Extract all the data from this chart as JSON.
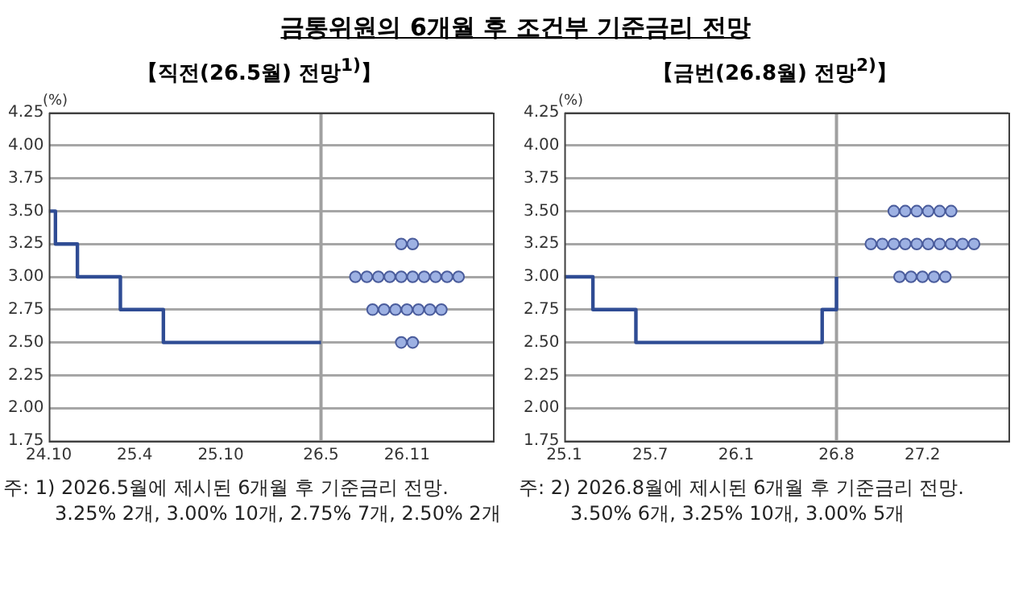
{
  "chart_data": [
    {
      "type": "step",
      "title": "금통위원의 6개월 후 조건부 기준금리 전망",
      "subtitle": "【직전(26.5월) 전망$^{1)}$】",
      "ylabel": "(%)",
      "annotations": [
        "주: 1) 2026.5월에 제시된 6개월 후 기준금리 전망.",
        "3.25% 2개, 3.00% 10개, 2.75% 7개, 2.50% 2개"
      ],
      "xlim": [
        "2024-10",
        "2027-05"
      ],
      "xticks": [
        {
          "value": "2024-10",
          "label": "24.10"
        },
        {
          "value": "2025-04",
          "label": "25.4"
        },
        {
          "value": "2025-10",
          "label": "25.10"
        },
        {
          "value": "2026-05",
          "label": "26.5"
        },
        {
          "value": "2026-11",
          "label": "26.11"
        }
      ],
      "ylim": [
        1.75,
        4.25
      ],
      "yticks": [
        1.75,
        {
          "value": 2,
          "label": "2.00"
        },
        2.25,
        {
          "value": 2.5,
          "label": "2.50"
        },
        2.75,
        {
          "value": 3,
          "label": "3.00"
        },
        3.25,
        {
          "value": 3.5,
          "label": "3.50"
        },
        3.75,
        {
          "value": 4,
          "label": "4.00"
        },
        4.25
      ],
      "grid": "y",
      "ref_lines": [
        {
          "axis": "x",
          "value": "2026-05",
          "color": "#a0a0a0"
        }
      ],
      "series": [
        {
          "color": "#2f4c94",
          "x": [
            "2024-10",
            "2024-10-15",
            "2024-12",
            "2025-03",
            "2025-06",
            "2026-05"
          ],
          "values": [
            3.5,
            3.25,
            3.0,
            2.75,
            2.5,
            2.5
          ]
        },
        {
          "type": "scatter",
          "marker": "circle",
          "color": "#9db1e3",
          "x": [
            "2026-10-19",
            "2026-11-13",
            "2026-07-13",
            "2026-08-07",
            "2026-09-01",
            "2026-09-25",
            "2026-10-19",
            "2026-11-13",
            "2026-12-07",
            "2027-01-01",
            "2027-01-25",
            "2027-02-19",
            "2026-08-19",
            "2026-09-13",
            "2026-10-07",
            "2026-11-01",
            "2026-11-25",
            "2026-12-19",
            "2027-01-13",
            "2026-10-19",
            "2026-11-13"
          ],
          "values": [
            3.25,
            3.25,
            3.0,
            3.0,
            3.0,
            3.0,
            3.0,
            3.0,
            3.0,
            3.0,
            3.0,
            3.0,
            2.75,
            2.75,
            2.75,
            2.75,
            2.75,
            2.75,
            2.75,
            2.5,
            2.5
          ]
        }
      ]
    },
    {
      "type": "step",
      "subtitle": "【금번(26.8월) 전망$^{2)}$】",
      "ylabel": "(%)",
      "annotations": [
        "주: 2) 2026.8월에 제시된 6개월 후 기준금리 전망.",
        "3.50%  6개,  3.25% 10개, 3.00% 5개"
      ],
      "xlim": [
        "2025-01",
        "2027-08"
      ],
      "xticks": [
        {
          "value": "2025-01",
          "label": "25.1"
        },
        {
          "value": "2025-07",
          "label": "25.7"
        },
        {
          "value": "2026-01",
          "label": "26.1"
        },
        {
          "value": "2026-08",
          "label": "26.8"
        },
        {
          "value": "2027-02",
          "label": "27.2"
        }
      ],
      "ylim": [
        1.75,
        4.25
      ],
      "yticks": [
        1.75,
        {
          "value": 2,
          "label": "2.00"
        },
        2.25,
        {
          "value": 2.5,
          "label": "2.50"
        },
        2.75,
        {
          "value": 3,
          "label": "3.00"
        },
        3.25,
        {
          "value": 3.5,
          "label": "3.50"
        },
        3.75,
        {
          "value": 4,
          "label": "4.00"
        },
        4.25
      ],
      "grid": "y",
      "ref_lines": [
        {
          "axis": "x",
          "value": "2026-08",
          "color": "#a0a0a0"
        }
      ],
      "series": [
        {
          "color": "#2f4c94",
          "x": [
            "2025-01",
            "2025-03",
            "2025-06",
            "2026-07",
            "2026-08"
          ],
          "values": [
            3.0,
            2.75,
            2.5,
            2.75,
            3.0
          ]
        },
        {
          "type": "scatter",
          "marker": "circle",
          "color": "#9db1e3",
          "x": [
            "2026-12-01",
            "2026-12-25",
            "2027-01-19",
            "2027-02-13",
            "2027-03-07",
            "2027-04-01",
            "2026-10-13",
            "2026-11-07",
            "2026-12-01",
            "2026-12-25",
            "2027-01-19",
            "2027-02-13",
            "2027-03-07",
            "2027-04-01",
            "2027-04-25",
            "2027-05-19",
            "2026-12-13",
            "2027-01-07",
            "2027-02-01",
            "2027-02-25",
            "2027-03-19"
          ],
          "values": [
            3.5,
            3.5,
            3.5,
            3.5,
            3.5,
            3.5,
            3.25,
            3.25,
            3.25,
            3.25,
            3.25,
            3.25,
            3.25,
            3.25,
            3.25,
            3.25,
            3.0,
            3.0,
            3.0,
            3.0,
            3.0
          ]
        }
      ]
    }
  ]
}
